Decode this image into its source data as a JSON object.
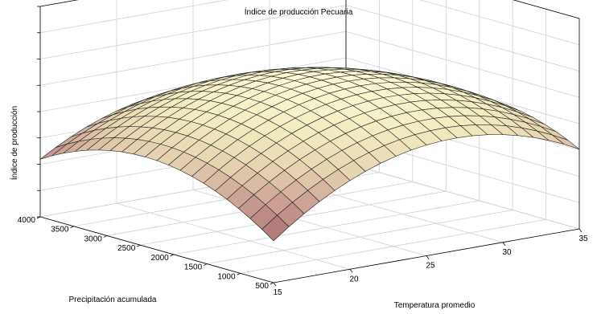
{
  "chart_data": {
    "type": "surface",
    "title": "Índice de producción Pecuaria",
    "xlabel": "Temperatura promedio",
    "ylabel": "Precipitación acumulada",
    "zlabel": "Índice de producción",
    "x_ticks": [
      "15",
      "20",
      "25",
      "30",
      "35"
    ],
    "y_ticks": [
      "500",
      "1000",
      "1500",
      "2000",
      "2500",
      "3000",
      "3500",
      "4000"
    ],
    "z_tick_labels_visible": false,
    "xlim": [
      15,
      35
    ],
    "ylim": [
      500,
      4000
    ],
    "grid": true,
    "colormap": [
      "#a66b6f",
      "#c89a90",
      "#e6d2b0",
      "#f3ecc0",
      "#fbf8d4"
    ],
    "surface_shape": "concave-down paraboloid; peak near Temperatura 25 and Precipitación 2500; lowest at the front corner (Temperatura 15, Precipitación 500) and the right corner (Temperatura 35, Precipitación 4000)",
    "mesh": {
      "x_lines": 21,
      "y_lines": 21
    }
  }
}
